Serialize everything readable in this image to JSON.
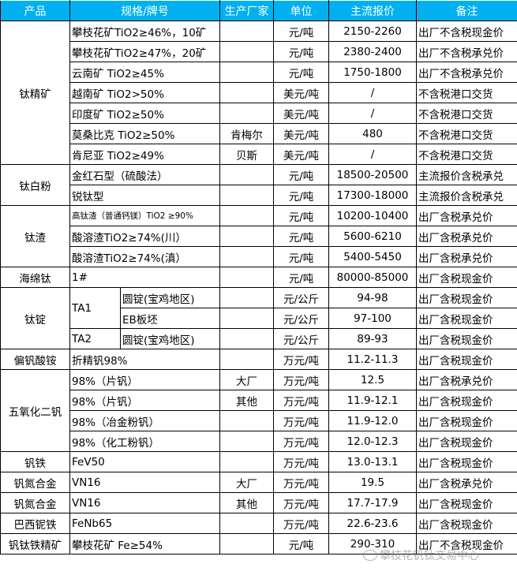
{
  "header": [
    "产品",
    "规格/牌号",
    "生产厂家",
    "单位",
    "主流报价",
    "备注"
  ],
  "header_color": "#00b0f0",
  "groups": [
    {
      "product": "钛精矿",
      "items": [
        {
          "spec": "攀枝花矿TiO2≥46%，10矿",
          "maker": "",
          "unit": "元/吨",
          "price": "2150-2260",
          "note": "出厂不含税现金价"
        },
        {
          "spec": "攀枝花矿TiO2≥47%，20矿",
          "maker": "",
          "unit": "元/吨",
          "price": "2380-2400",
          "note": "出厂不含税承兑价"
        },
        {
          "spec": "云南矿 TiO2≥45%",
          "maker": "",
          "unit": "元/吨",
          "price": "1750-1800",
          "note": "出厂不含税承兑价"
        },
        {
          "spec": "越南矿 TiO2>50%",
          "maker": "",
          "unit": "美元/吨",
          "price": "/",
          "note": "不含税港口交货"
        },
        {
          "spec": "印度矿 TiO2≥50%",
          "maker": "",
          "unit": "美元/吨",
          "price": "/",
          "note": "不含税港口交货"
        },
        {
          "spec": "莫桑比克 TiO2≥50%",
          "maker": "肯梅尔",
          "unit": "美元/吨",
          "price": "480",
          "note": "不含税港口交货"
        },
        {
          "spec": "肯尼亚 TiO2≥49%",
          "maker": "贝斯",
          "unit": "美元/吨",
          "price": "/",
          "note": "不含税港口交货"
        }
      ]
    },
    {
      "product": "钛白粉",
      "items": [
        {
          "spec": "金红石型（硫酸法）",
          "maker": "",
          "unit": "元/吨",
          "price": "18500-20500",
          "note": "主流报价含税承兑"
        },
        {
          "spec": "锐钛型",
          "maker": "",
          "unit": "元/吨",
          "price": "17300-18000",
          "note": "主流报价含税承兑"
        }
      ]
    },
    {
      "product": "钛渣",
      "items": [
        {
          "spec": "高钛渣（普通钙镁）TiO2 ≥90%",
          "small": true,
          "maker": "",
          "unit": "元/吨",
          "price": "10200-10400",
          "note": "出厂含税承兑价"
        },
        {
          "spec": "酸溶渣TiO2≥74%(川）",
          "maker": "",
          "unit": "元/吨",
          "price": "5600-6210",
          "note": "出厂含税承兑价"
        },
        {
          "spec": "酸溶渣TiO2≥74%(滇）",
          "maker": "",
          "unit": "元/吨",
          "price": "5400-5450",
          "note": "出厂含税承兑价"
        }
      ]
    },
    {
      "product": "海绵钛",
      "items": [
        {
          "spec": "1#",
          "maker": "",
          "unit": "元/吨",
          "price": "80000-85000",
          "note": "出厂含税现金价"
        }
      ]
    },
    {
      "product": "钛锭",
      "items": [
        {
          "grade": "TA1",
          "spec": "圆锭(宝鸡地区)",
          "unit": "元/公斤",
          "price": "94-98",
          "note": "出厂含税现金价"
        },
        {
          "grade": "TA1",
          "spec": "EB板坯",
          "unit": "元/公斤",
          "price": "97-100",
          "note": "出厂含税现金价"
        },
        {
          "grade": "TA2",
          "spec": "圆锭(宝鸡地区)",
          "unit": "元/公斤",
          "price": "89-93",
          "note": "出厂含税现金价"
        }
      ]
    },
    {
      "product": "偏钒酸铵",
      "items": [
        {
          "spec": "折精钒98%",
          "maker": "",
          "unit": "万元/吨",
          "price": "11.2-11.3",
          "note": "出厂含税现金价"
        }
      ]
    },
    {
      "product": "五氧化二钒",
      "items": [
        {
          "spec": "98%（片钒）",
          "maker": "大厂",
          "unit": "万元/吨",
          "price": "12.5",
          "note": "出厂含税承兑价"
        },
        {
          "spec": "98%（片钒）",
          "maker": "其他",
          "unit": "万元/吨",
          "price": "11.9-12.1",
          "note": "出厂含税现金价"
        },
        {
          "spec": "98%（冶金粉钒）",
          "maker": "",
          "unit": "万元/吨",
          "price": "11.9-12.0",
          "note": "出厂含税现金价"
        },
        {
          "spec": "98%（化工粉钒）",
          "maker": "",
          "unit": "万元/吨",
          "price": "12.0-12.3",
          "note": "出厂含税现金价"
        }
      ]
    },
    {
      "product": "钒铁",
      "items": [
        {
          "spec": "FeV50",
          "maker": "",
          "unit": "万元/吨",
          "price": "13.0-13.1",
          "note": "出厂含税现金价"
        }
      ]
    },
    {
      "product": "钒氮合金",
      "items": [
        {
          "spec": "VN16",
          "maker": "大厂",
          "unit": "万元/吨",
          "price": "19.5",
          "note": "出厂含税承兑价"
        }
      ]
    },
    {
      "product": "钒氮合金",
      "items": [
        {
          "spec": "VN16",
          "maker": "其他",
          "unit": "万元/吨",
          "price": "17.7-17.9",
          "note": "出厂含税现金价"
        }
      ]
    },
    {
      "product": "巴西铌铁",
      "items": [
        {
          "spec": "FeNb65",
          "maker": "",
          "unit": "万元/吨",
          "price": "22.6-23.6",
          "note": "出厂含税现金价"
        }
      ]
    },
    {
      "product": "钒钛铁精矿",
      "items": [
        {
          "spec": "攀枝花矿 Fe≥54%",
          "maker": "",
          "unit": "元/吨",
          "price": "290-310",
          "note": "出厂不含税现金价"
        }
      ]
    }
  ],
  "watermark": "攀枝花钒钛交易中心"
}
